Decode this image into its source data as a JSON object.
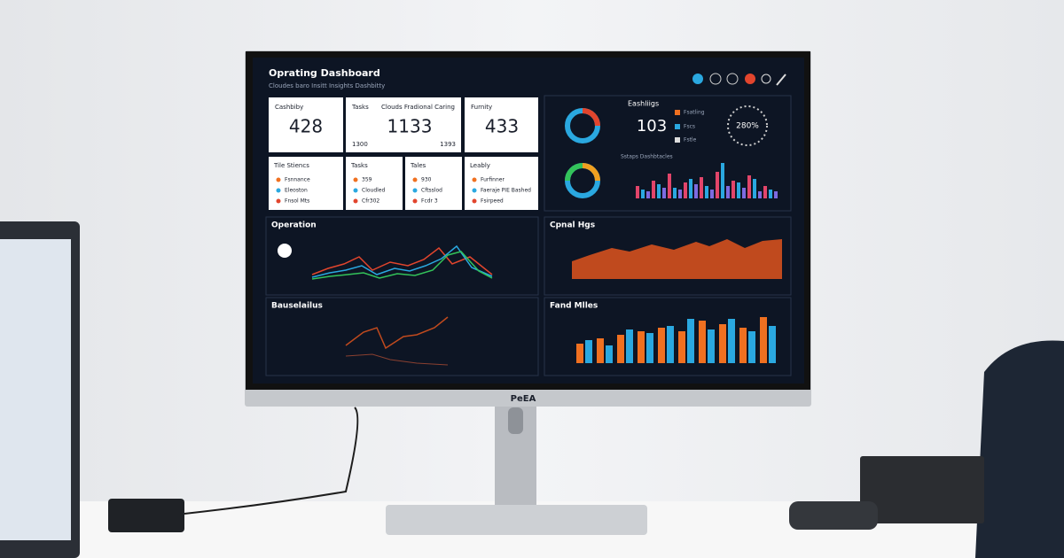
{
  "screen": {
    "title": "Oprating Dashboard",
    "subtitle": "Cloudes baro Insitt Insights Dashbitty",
    "kpis": [
      {
        "label": "Cashbiby",
        "value": 428
      },
      {
        "label": "Tasks",
        "note": "Clouds Fradional Caring",
        "value": 1133,
        "sub": [
          "1300",
          "1393"
        ]
      },
      {
        "label": "Furnity",
        "value": 433
      }
    ],
    "lists": [
      {
        "title": "Tile Stiencs",
        "items": [
          "Fsnnance",
          "Eleoston",
          "Fnsol Mts"
        ]
      },
      {
        "title": "Tasks",
        "items": [
          "359",
          "Cloudled",
          "Cfr302"
        ]
      },
      {
        "title": "Tales",
        "items": [
          "930",
          "Cftsslod",
          "Fcdr 3"
        ]
      },
      {
        "title": "Leably",
        "items": [
          "Furfinner",
          "Faeraje PIE Bashed",
          "Fsirpeed"
        ]
      }
    ],
    "summary": {
      "title": "Eashliigs",
      "value": 103,
      "legend": [
        "Fsatling",
        "Fscs",
        "Fstle"
      ],
      "gauge": "280%",
      "chart_title": "Sstaps Dashbtacles"
    },
    "panels": [
      "Operation",
      "Cpnal Hgs",
      "Bauselailus",
      "Fand Mlles"
    ]
  },
  "monitor_brand": "PeEA"
}
